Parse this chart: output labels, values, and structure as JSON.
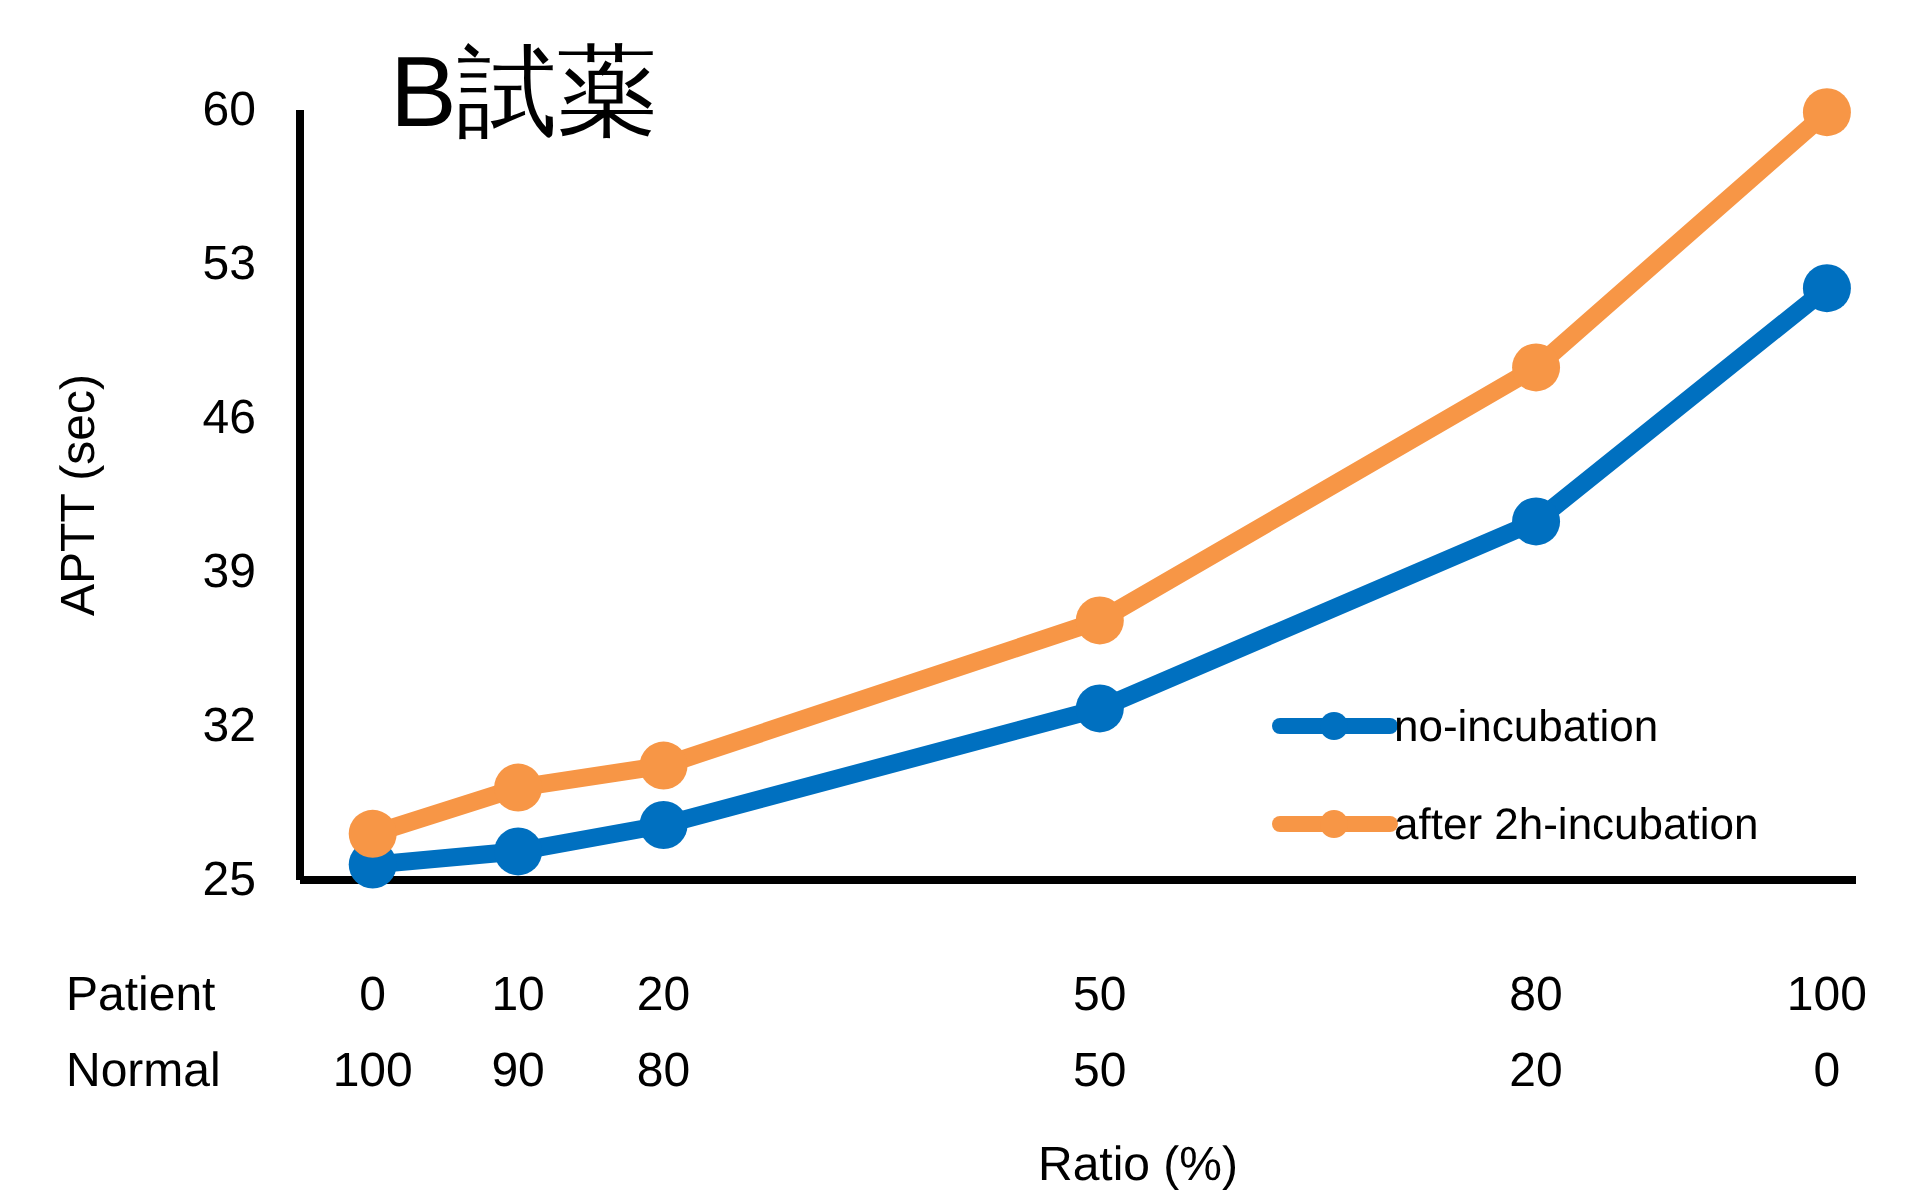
{
  "chart_data": {
    "type": "line",
    "title": "B試薬",
    "xlabel": "Ratio (%)",
    "ylabel": "APTT (sec)",
    "x": [
      0,
      10,
      20,
      50,
      80,
      100
    ],
    "xlim": [
      -5,
      102
    ],
    "xticks": [
      0,
      10,
      20,
      50,
      80,
      100
    ],
    "x2lim": [
      105,
      -2
    ],
    "x2ticks": [
      100,
      90,
      80,
      50,
      20,
      0
    ],
    "ylim": [
      25,
      60
    ],
    "yticks": [
      25,
      32,
      39,
      46,
      53,
      60
    ],
    "series": [
      {
        "name": "no-incubation",
        "color": "#0070c0",
        "values": [
          25.7,
          26.3,
          27.5,
          32.8,
          41.3,
          51.9
        ]
      },
      {
        "name": "after 2h-incubation",
        "color": "#f79646",
        "values": [
          27.1,
          29.2,
          30.2,
          36.8,
          48.3,
          59.9
        ]
      }
    ],
    "annotations": [
      "Patient",
      "Normal"
    ],
    "legend": "bottom right",
    "marker": "circle",
    "line_style": "solid",
    "grid": false
  }
}
